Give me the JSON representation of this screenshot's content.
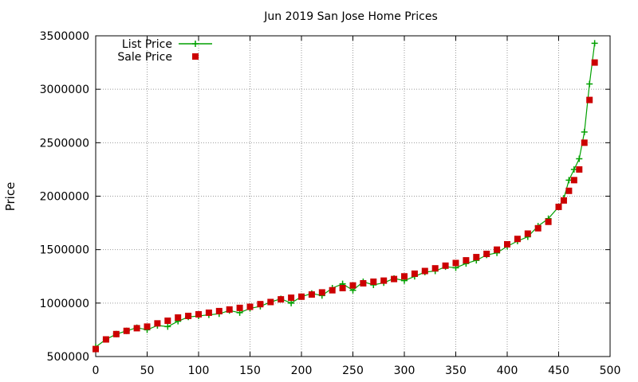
{
  "chart_data": {
    "type": "scatter",
    "title": "Jun 2019 San Jose Home Prices",
    "xlabel": "",
    "ylabel": "Price",
    "xlim": [
      0,
      500
    ],
    "ylim": [
      500000,
      3500000
    ],
    "xticks": [
      "0",
      "50",
      "100",
      "150",
      "200",
      "250",
      "300",
      "350",
      "400",
      "450",
      "500"
    ],
    "yticks": [
      "500000",
      "1000000",
      "1500000",
      "2000000",
      "2500000",
      "3000000",
      "3500000"
    ],
    "grid": true,
    "legend_position": "top-left",
    "series": [
      {
        "name": "List Price",
        "style": "linespoints",
        "marker": "plus",
        "color": "#00a000",
        "x": [
          0,
          10,
          20,
          30,
          40,
          50,
          60,
          70,
          80,
          90,
          100,
          110,
          120,
          130,
          140,
          150,
          160,
          170,
          180,
          190,
          200,
          210,
          220,
          230,
          240,
          250,
          260,
          270,
          280,
          290,
          300,
          310,
          320,
          330,
          340,
          350,
          360,
          370,
          380,
          390,
          400,
          410,
          420,
          430,
          440,
          450,
          455,
          460,
          465,
          470,
          475,
          480,
          485
        ],
        "y": [
          590000,
          660000,
          710000,
          740000,
          770000,
          750000,
          790000,
          780000,
          830000,
          870000,
          880000,
          890000,
          900000,
          930000,
          910000,
          950000,
          970000,
          1010000,
          1040000,
          1000000,
          1060000,
          1090000,
          1070000,
          1140000,
          1180000,
          1120000,
          1200000,
          1170000,
          1190000,
          1230000,
          1210000,
          1250000,
          1290000,
          1300000,
          1340000,
          1330000,
          1370000,
          1400000,
          1450000,
          1470000,
          1530000,
          1580000,
          1620000,
          1720000,
          1790000,
          1900000,
          1980000,
          2150000,
          2250000,
          2350000,
          2600000,
          3050000,
          3430000
        ]
      },
      {
        "name": "Sale Price",
        "style": "points",
        "marker": "square",
        "color": "#cc0000",
        "x": [
          0,
          10,
          20,
          30,
          40,
          50,
          60,
          70,
          80,
          90,
          100,
          110,
          120,
          130,
          140,
          150,
          160,
          170,
          180,
          190,
          200,
          210,
          220,
          230,
          240,
          250,
          260,
          270,
          280,
          290,
          300,
          310,
          320,
          330,
          340,
          350,
          360,
          370,
          380,
          390,
          400,
          410,
          420,
          430,
          440,
          450,
          455,
          460,
          465,
          470,
          475,
          480,
          485
        ],
        "y": [
          570000,
          660000,
          710000,
          740000,
          765000,
          780000,
          810000,
          835000,
          865000,
          880000,
          895000,
          910000,
          925000,
          940000,
          955000,
          965000,
          990000,
          1010000,
          1035000,
          1050000,
          1060000,
          1080000,
          1100000,
          1120000,
          1140000,
          1165000,
          1185000,
          1200000,
          1210000,
          1225000,
          1250000,
          1275000,
          1300000,
          1325000,
          1350000,
          1375000,
          1400000,
          1430000,
          1460000,
          1500000,
          1550000,
          1600000,
          1650000,
          1700000,
          1760000,
          1900000,
          1960000,
          2050000,
          2150000,
          2250000,
          2500000,
          2900000,
          3250000
        ]
      }
    ]
  }
}
